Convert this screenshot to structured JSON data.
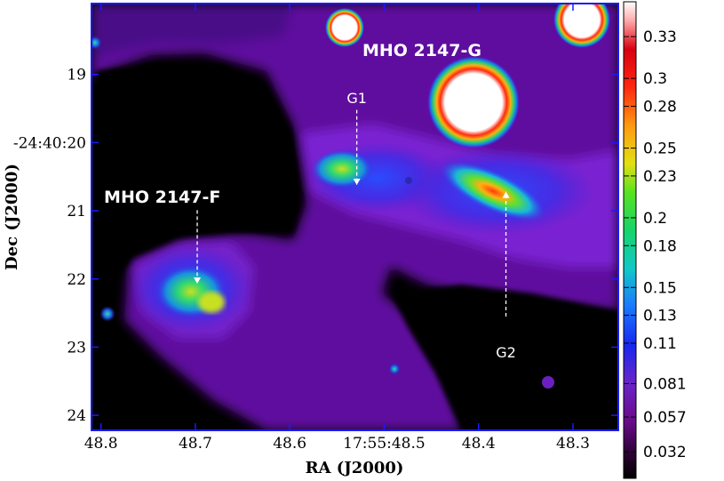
{
  "chart_data": {
    "type": "heatmap",
    "xlabel": "RA (J2000)",
    "ylabel": "Dec (J2000)",
    "x_ticks": [
      {
        "value": 48.8,
        "label": "48.8"
      },
      {
        "value": 48.7,
        "label": "48.7"
      },
      {
        "value": 48.6,
        "label": "48.6"
      },
      {
        "value": 48.5,
        "label": "17:55:48.5"
      },
      {
        "value": 48.4,
        "label": "48.4"
      },
      {
        "value": 48.3,
        "label": "48.3"
      }
    ],
    "y_ticks": [
      {
        "value": 19,
        "label": "19"
      },
      {
        "value": 20,
        "label": "-24:40:20"
      },
      {
        "value": 21,
        "label": "21"
      },
      {
        "value": 22,
        "label": "22"
      },
      {
        "value": 23,
        "label": "23"
      },
      {
        "value": 24,
        "label": "24"
      }
    ],
    "xlim": [
      48.81,
      48.252
    ],
    "ylim": [
      17.96,
      24.22
    ],
    "colorbar": {
      "min": 0.013,
      "max": 0.355,
      "ticks": [
        {
          "value": 0.032,
          "label": "0.032"
        },
        {
          "value": 0.057,
          "label": "0.057"
        },
        {
          "value": 0.081,
          "label": "0.081"
        },
        {
          "value": 0.11,
          "label": "0.11"
        },
        {
          "value": 0.13,
          "label": "0.13"
        },
        {
          "value": 0.15,
          "label": "0.15"
        },
        {
          "value": 0.18,
          "label": "0.18"
        },
        {
          "value": 0.2,
          "label": "0.2"
        },
        {
          "value": 0.23,
          "label": "0.23"
        },
        {
          "value": 0.25,
          "label": "0.25"
        },
        {
          "value": 0.28,
          "label": "0.28"
        },
        {
          "value": 0.3,
          "label": "0.3"
        },
        {
          "value": 0.33,
          "label": "0.33"
        }
      ]
    },
    "annotations": [
      {
        "text": "MHO 2147-G",
        "size": "big",
        "x": 48.46,
        "y": 18.64
      },
      {
        "text": "MHO 2147-F",
        "size": "big",
        "x": 48.735,
        "y": 20.79
      },
      {
        "text": "G1",
        "size": "small",
        "x": 48.529,
        "y": 19.33
      },
      {
        "text": "G2",
        "size": "small",
        "x": 48.371,
        "y": 23.06
      }
    ],
    "arrows": [
      {
        "name": "g1-arrow",
        "x": 48.529,
        "y_from": 19.52,
        "y_to": 20.62
      },
      {
        "name": "g2-arrow",
        "x": 48.371,
        "y_from": 22.55,
        "y_to": 20.72
      },
      {
        "name": "f-arrow",
        "x": 48.698,
        "y_from": 20.99,
        "y_to": 22.07
      }
    ]
  }
}
